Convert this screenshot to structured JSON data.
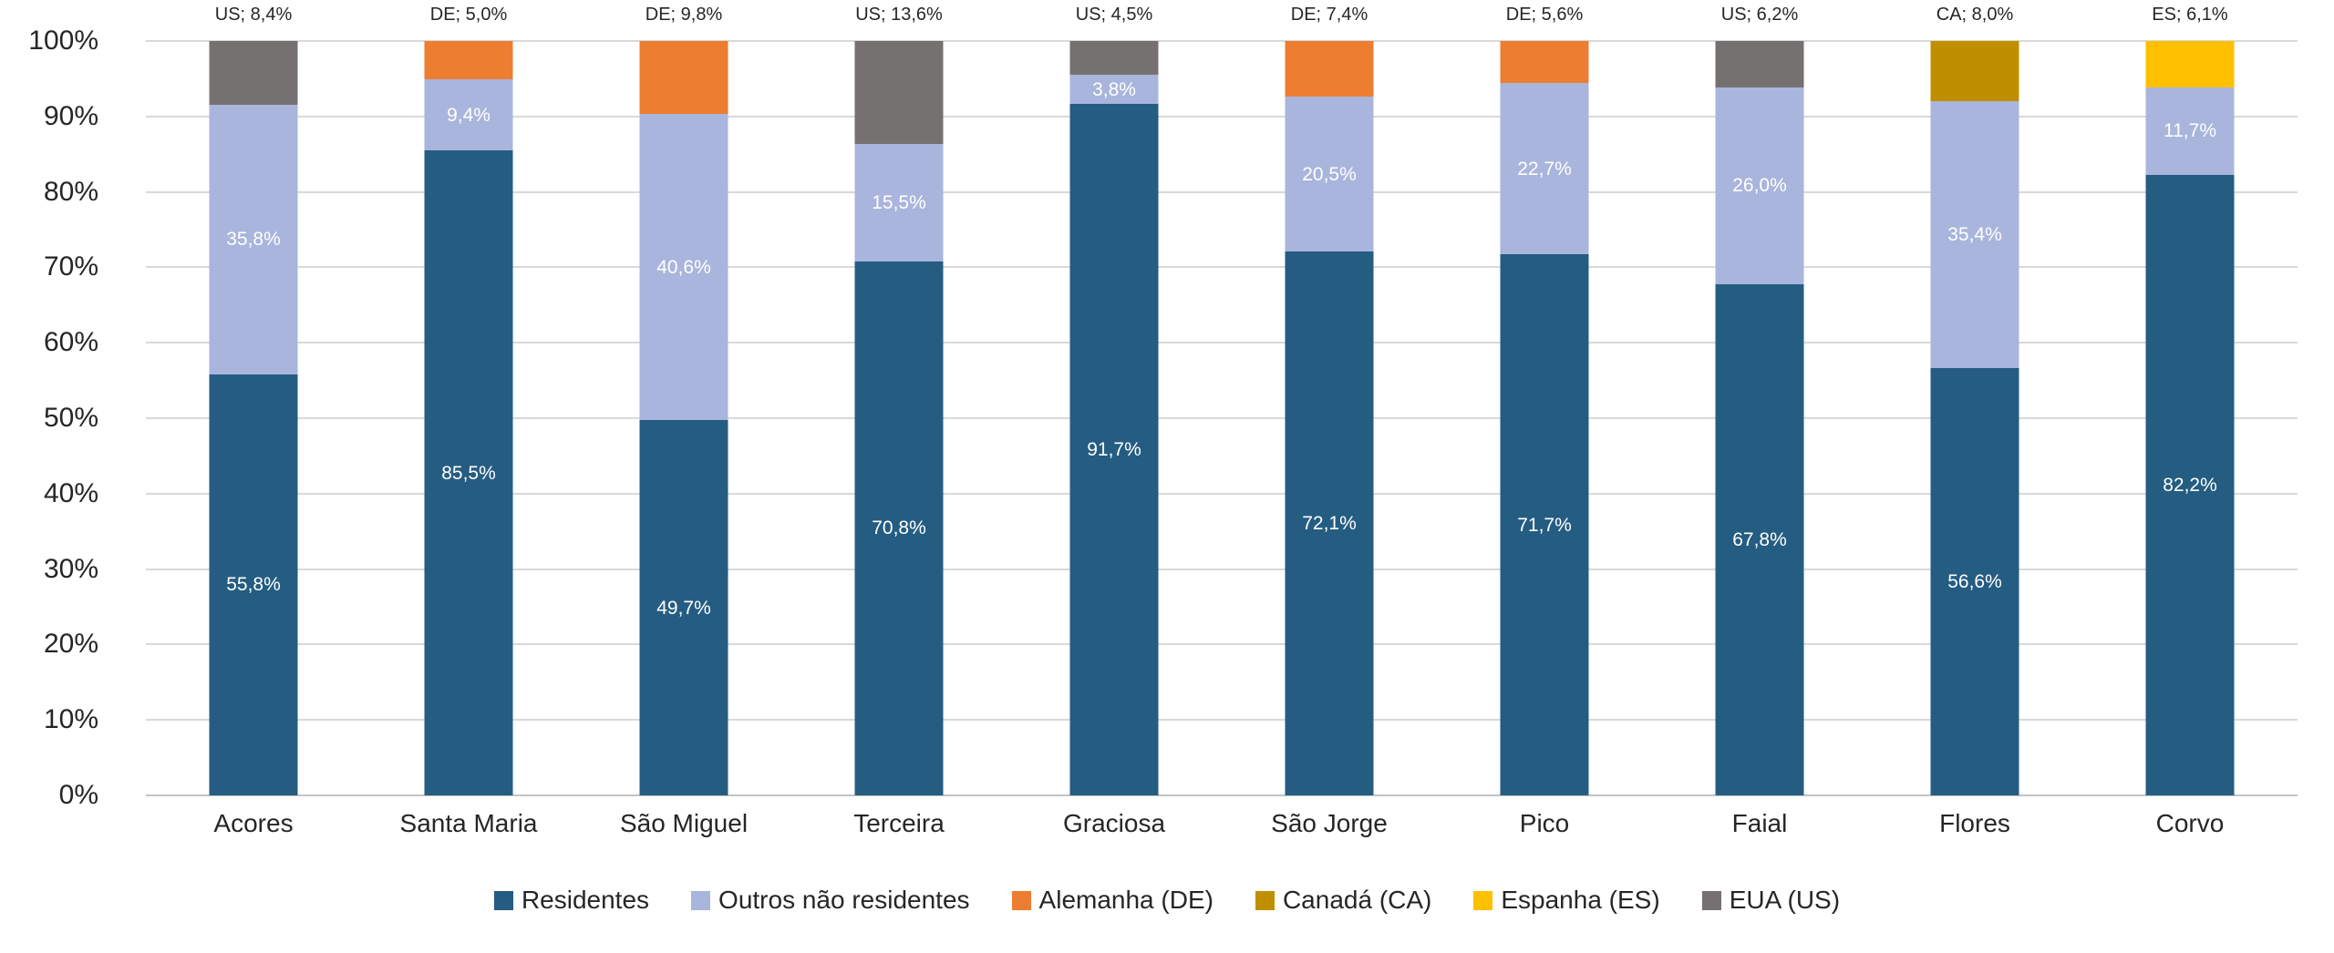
{
  "chart_data": {
    "type": "bar",
    "stacked": true,
    "percent_axis": true,
    "grid": true,
    "legend_position": "bottom",
    "title": "",
    "xlabel": "",
    "ylabel": "",
    "ylim": [
      0,
      100
    ],
    "y_ticks": [
      {
        "value": 0,
        "label": "0%"
      },
      {
        "value": 10,
        "label": "10%"
      },
      {
        "value": 20,
        "label": "20%"
      },
      {
        "value": 30,
        "label": "30%"
      },
      {
        "value": 40,
        "label": "40%"
      },
      {
        "value": 50,
        "label": "50%"
      },
      {
        "value": 60,
        "label": "60%"
      },
      {
        "value": 70,
        "label": "70%"
      },
      {
        "value": 80,
        "label": "80%"
      },
      {
        "value": 90,
        "label": "90%"
      },
      {
        "value": 100,
        "label": "100%"
      }
    ],
    "categories": [
      "Acores",
      "Santa Maria",
      "São Miguel",
      "Terceira",
      "Graciosa",
      "São Jorge",
      "Pico",
      "Faial",
      "Flores",
      "Corvo"
    ],
    "series": [
      {
        "key": "residentes",
        "name": "Residentes",
        "color": "#255c82",
        "inside_labels": true,
        "values": [
          55.8,
          85.5,
          49.7,
          70.8,
          91.7,
          72.1,
          71.7,
          67.8,
          56.6,
          82.2
        ]
      },
      {
        "key": "outros-nao-residentes",
        "name": "Outros não residentes",
        "color": "#a9b5dc",
        "inside_labels": true,
        "values": [
          35.8,
          9.4,
          40.6,
          15.5,
          3.8,
          20.5,
          22.7,
          26.0,
          35.4,
          11.7
        ]
      },
      {
        "key": "alemanha-de",
        "name": "Alemanha (DE)",
        "color": "#ed7d31",
        "inside_labels": false,
        "values": [
          0,
          5.0,
          9.8,
          0,
          0,
          7.4,
          5.6,
          0,
          0,
          0
        ]
      },
      {
        "key": "canada-ca",
        "name": "Canadá (CA)",
        "color": "#bf8f00",
        "inside_labels": false,
        "values": [
          0,
          0,
          0,
          0,
          0,
          0,
          0,
          0,
          8.0,
          0
        ]
      },
      {
        "key": "espanha-es",
        "name": "Espanha (ES)",
        "color": "#ffc000",
        "inside_labels": false,
        "values": [
          0,
          0,
          0,
          0,
          0,
          0,
          0,
          0,
          0,
          6.1
        ]
      },
      {
        "key": "eua-us",
        "name": "EUA (US)",
        "color": "#767171",
        "inside_labels": false,
        "values": [
          8.4,
          0,
          0,
          13.6,
          4.5,
          0,
          0,
          6.2,
          0,
          0
        ]
      }
    ],
    "top_labels": [
      "US; 8,4%",
      "DE; 5,0%",
      "DE; 9,8%",
      "US; 13,6%",
      "US; 4,5%",
      "DE; 7,4%",
      "DE; 5,6%",
      "US; 6,2%",
      "CA; 8,0%",
      "ES; 6,1%"
    ],
    "colors": {
      "gridline": "#d9d9d9",
      "axis_line": "#c3c3c3",
      "text": "#262626",
      "segment_label_text": "#ffffff",
      "background": "#ffffff"
    }
  }
}
